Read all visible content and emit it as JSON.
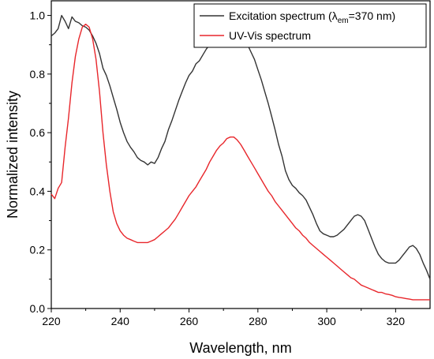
{
  "chart_data": {
    "type": "line",
    "xlabel": "Wavelength, nm",
    "ylabel": "Normalized intensity",
    "xlim": [
      220,
      330
    ],
    "ylim": [
      0.0,
      1.05
    ],
    "x_ticks": [
      "220",
      "240",
      "260",
      "280",
      "300",
      "320"
    ],
    "y_ticks": [
      "0.0",
      "0.2",
      "0.4",
      "0.6",
      "0.8",
      "1.0"
    ],
    "grid": false,
    "legend_position": "top-right",
    "legend": {
      "excitation_prefix": "Excitation spectrum (",
      "excitation_lambda": "λ",
      "excitation_sub": "em",
      "excitation_suffix": "=370 nm)",
      "uvvis": "UV-Vis spectrum"
    },
    "series": [
      {
        "name": "Excitation spectrum (λem=370 nm)",
        "color": "#333333",
        "points": [
          [
            220,
            0.93
          ],
          [
            221,
            0.94
          ],
          [
            222,
            0.955
          ],
          [
            223,
            1.0
          ],
          [
            224,
            0.98
          ],
          [
            225,
            0.955
          ],
          [
            226,
            0.995
          ],
          [
            227,
            0.98
          ],
          [
            228,
            0.975
          ],
          [
            229,
            0.965
          ],
          [
            230,
            0.96
          ],
          [
            231,
            0.95
          ],
          [
            232,
            0.93
          ],
          [
            233,
            0.905
          ],
          [
            234,
            0.87
          ],
          [
            235,
            0.82
          ],
          [
            236,
            0.795
          ],
          [
            237,
            0.76
          ],
          [
            238,
            0.72
          ],
          [
            239,
            0.68
          ],
          [
            240,
            0.635
          ],
          [
            241,
            0.6
          ],
          [
            242,
            0.57
          ],
          [
            243,
            0.55
          ],
          [
            244,
            0.535
          ],
          [
            245,
            0.515
          ],
          [
            246,
            0.505
          ],
          [
            247,
            0.5
          ],
          [
            248,
            0.49
          ],
          [
            249,
            0.5
          ],
          [
            250,
            0.495
          ],
          [
            251,
            0.515
          ],
          [
            252,
            0.545
          ],
          [
            253,
            0.57
          ],
          [
            254,
            0.61
          ],
          [
            255,
            0.64
          ],
          [
            256,
            0.675
          ],
          [
            257,
            0.71
          ],
          [
            258,
            0.74
          ],
          [
            259,
            0.77
          ],
          [
            260,
            0.795
          ],
          [
            261,
            0.81
          ],
          [
            262,
            0.835
          ],
          [
            263,
            0.845
          ],
          [
            264,
            0.865
          ],
          [
            265,
            0.885
          ],
          [
            266,
            0.9
          ],
          [
            267,
            0.905
          ],
          [
            268,
            0.915
          ],
          [
            269,
            0.925
          ],
          [
            270,
            0.93
          ],
          [
            271,
            0.935
          ],
          [
            272,
            0.94
          ],
          [
            273,
            0.945
          ],
          [
            274,
            0.945
          ],
          [
            275,
            0.93
          ],
          [
            276,
            0.915
          ],
          [
            277,
            0.9
          ],
          [
            278,
            0.875
          ],
          [
            279,
            0.85
          ],
          [
            280,
            0.815
          ],
          [
            281,
            0.78
          ],
          [
            282,
            0.74
          ],
          [
            283,
            0.7
          ],
          [
            284,
            0.655
          ],
          [
            285,
            0.61
          ],
          [
            286,
            0.56
          ],
          [
            287,
            0.52
          ],
          [
            288,
            0.47
          ],
          [
            289,
            0.44
          ],
          [
            290,
            0.42
          ],
          [
            291,
            0.41
          ],
          [
            292,
            0.395
          ],
          [
            293,
            0.385
          ],
          [
            294,
            0.37
          ],
          [
            295,
            0.345
          ],
          [
            296,
            0.32
          ],
          [
            297,
            0.29
          ],
          [
            298,
            0.265
          ],
          [
            299,
            0.255
          ],
          [
            300,
            0.25
          ],
          [
            301,
            0.245
          ],
          [
            302,
            0.245
          ],
          [
            303,
            0.25
          ],
          [
            304,
            0.26
          ],
          [
            305,
            0.27
          ],
          [
            306,
            0.285
          ],
          [
            307,
            0.3
          ],
          [
            308,
            0.315
          ],
          [
            309,
            0.32
          ],
          [
            310,
            0.315
          ],
          [
            311,
            0.3
          ],
          [
            312,
            0.27
          ],
          [
            313,
            0.24
          ],
          [
            314,
            0.21
          ],
          [
            315,
            0.185
          ],
          [
            316,
            0.17
          ],
          [
            317,
            0.16
          ],
          [
            318,
            0.155
          ],
          [
            319,
            0.155
          ],
          [
            320,
            0.155
          ],
          [
            321,
            0.165
          ],
          [
            322,
            0.18
          ],
          [
            323,
            0.195
          ],
          [
            324,
            0.21
          ],
          [
            325,
            0.215
          ],
          [
            326,
            0.205
          ],
          [
            327,
            0.185
          ],
          [
            328,
            0.155
          ],
          [
            329,
            0.13
          ],
          [
            330,
            0.1
          ]
        ]
      },
      {
        "name": "UV-Vis spectrum",
        "color": "#e8262b",
        "points": [
          [
            220,
            0.39
          ],
          [
            221,
            0.375
          ],
          [
            222,
            0.41
          ],
          [
            223,
            0.43
          ],
          [
            224,
            0.55
          ],
          [
            225,
            0.65
          ],
          [
            226,
            0.77
          ],
          [
            227,
            0.86
          ],
          [
            228,
            0.92
          ],
          [
            229,
            0.96
          ],
          [
            230,
            0.97
          ],
          [
            231,
            0.96
          ],
          [
            232,
            0.92
          ],
          [
            233,
            0.85
          ],
          [
            234,
            0.74
          ],
          [
            235,
            0.6
          ],
          [
            236,
            0.49
          ],
          [
            237,
            0.4
          ],
          [
            238,
            0.33
          ],
          [
            239,
            0.29
          ],
          [
            240,
            0.265
          ],
          [
            241,
            0.25
          ],
          [
            242,
            0.24
          ],
          [
            243,
            0.235
          ],
          [
            244,
            0.23
          ],
          [
            245,
            0.225
          ],
          [
            246,
            0.225
          ],
          [
            247,
            0.225
          ],
          [
            248,
            0.225
          ],
          [
            249,
            0.23
          ],
          [
            250,
            0.235
          ],
          [
            251,
            0.245
          ],
          [
            252,
            0.255
          ],
          [
            253,
            0.265
          ],
          [
            254,
            0.275
          ],
          [
            255,
            0.29
          ],
          [
            256,
            0.305
          ],
          [
            257,
            0.325
          ],
          [
            258,
            0.345
          ],
          [
            259,
            0.365
          ],
          [
            260,
            0.385
          ],
          [
            261,
            0.4
          ],
          [
            262,
            0.415
          ],
          [
            263,
            0.435
          ],
          [
            264,
            0.455
          ],
          [
            265,
            0.475
          ],
          [
            266,
            0.5
          ],
          [
            267,
            0.52
          ],
          [
            268,
            0.54
          ],
          [
            269,
            0.555
          ],
          [
            270,
            0.565
          ],
          [
            271,
            0.58
          ],
          [
            272,
            0.585
          ],
          [
            273,
            0.585
          ],
          [
            274,
            0.575
          ],
          [
            275,
            0.56
          ],
          [
            276,
            0.54
          ],
          [
            277,
            0.52
          ],
          [
            278,
            0.5
          ],
          [
            279,
            0.48
          ],
          [
            280,
            0.46
          ],
          [
            281,
            0.44
          ],
          [
            282,
            0.42
          ],
          [
            283,
            0.4
          ],
          [
            284,
            0.385
          ],
          [
            285,
            0.365
          ],
          [
            286,
            0.35
          ],
          [
            287,
            0.335
          ],
          [
            288,
            0.32
          ],
          [
            289,
            0.305
          ],
          [
            290,
            0.29
          ],
          [
            291,
            0.275
          ],
          [
            292,
            0.265
          ],
          [
            293,
            0.25
          ],
          [
            294,
            0.24
          ],
          [
            295,
            0.225
          ],
          [
            296,
            0.215
          ],
          [
            297,
            0.205
          ],
          [
            298,
            0.195
          ],
          [
            299,
            0.185
          ],
          [
            300,
            0.175
          ],
          [
            301,
            0.165
          ],
          [
            302,
            0.155
          ],
          [
            303,
            0.145
          ],
          [
            304,
            0.135
          ],
          [
            305,
            0.125
          ],
          [
            306,
            0.115
          ],
          [
            307,
            0.105
          ],
          [
            308,
            0.1
          ],
          [
            309,
            0.09
          ],
          [
            310,
            0.08
          ],
          [
            311,
            0.075
          ],
          [
            312,
            0.07
          ],
          [
            313,
            0.065
          ],
          [
            314,
            0.06
          ],
          [
            315,
            0.055
          ],
          [
            316,
            0.055
          ],
          [
            317,
            0.05
          ],
          [
            318,
            0.048
          ],
          [
            319,
            0.045
          ],
          [
            320,
            0.04
          ],
          [
            321,
            0.038
          ],
          [
            322,
            0.036
          ],
          [
            323,
            0.034
          ],
          [
            324,
            0.032
          ],
          [
            325,
            0.03
          ],
          [
            326,
            0.03
          ],
          [
            327,
            0.03
          ],
          [
            328,
            0.03
          ],
          [
            329,
            0.03
          ],
          [
            330,
            0.03
          ]
        ]
      }
    ]
  }
}
